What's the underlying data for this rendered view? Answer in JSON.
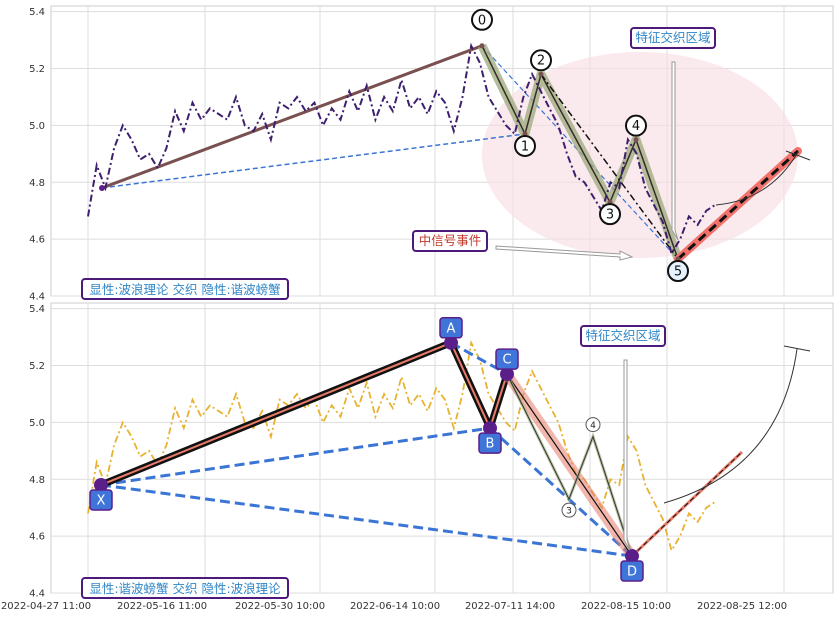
{
  "chart_data": [
    {
      "type": "line",
      "panel": "top",
      "title": "",
      "ylim": [
        4.4,
        5.42
      ],
      "yticks": [
        "4.4",
        "4.6",
        "4.8",
        "5.0",
        "5.2",
        "5.4"
      ],
      "grid": true,
      "series": [
        {
          "values": [
            4.68,
            4.86,
            4.78,
            4.92,
            5.0,
            4.95,
            4.88,
            4.9,
            4.85,
            4.92,
            5.05,
            4.98,
            5.08,
            5.02,
            5.06,
            5.04,
            5.02,
            5.1,
            5.0,
            4.98,
            5.04,
            4.95,
            5.08,
            5.06,
            5.1,
            5.05,
            5.08,
            5.0,
            5.06,
            5.02,
            5.12,
            5.05,
            5.14,
            5.02,
            5.1,
            5.05,
            5.16,
            5.06,
            5.1,
            5.04,
            5.12,
            5.08,
            4.98,
            5.1,
            5.28,
            5.22,
            5.1,
            5.05,
            5.0,
            4.97,
            5.1,
            5.18,
            5.12,
            5.06,
            5.0,
            4.9,
            4.82,
            4.8,
            4.75,
            4.7,
            4.8,
            4.78,
            4.95,
            4.9,
            4.78,
            4.72,
            4.66,
            4.55,
            4.6,
            4.68,
            4.65,
            4.7,
            4.72
          ]
        }
      ],
      "pattern_lines": {
        "solid_0_to_1": [
          [
            4.78,
            5.28
          ]
        ],
        "dashed_blue": [
          4.78,
          4.98
        ]
      },
      "wave_points": [
        {
          "label": "0",
          "value": 5.28
        },
        {
          "label": "1",
          "value": 4.97
        },
        {
          "label": "2",
          "value": 5.18
        },
        {
          "label": "3",
          "value": 4.73
        },
        {
          "label": "4",
          "value": 4.95
        },
        {
          "label": "5",
          "value": 4.53
        }
      ],
      "projection": {
        "from": 4.53,
        "to": 4.91
      },
      "annotations": {
        "zone": "特征交织区域",
        "signal": "中信号事件",
        "legend_box": "显性:波浪理论 交织 隐性:谐波螃蟹"
      },
      "colors": {
        "series": "#3d1f6e",
        "wave_band": "#9aa97a",
        "projection": "#f2726b",
        "zone_fill": "#f7dde4",
        "box_border": "#4b1a7a",
        "box_text": "#2f86c7"
      }
    },
    {
      "type": "line",
      "panel": "bottom",
      "title": "",
      "ylim": [
        4.4,
        5.42
      ],
      "yticks": [
        "4.4",
        "4.6",
        "4.8",
        "5.0",
        "5.2",
        "5.4"
      ],
      "xticks": [
        "2022-04-27 11:00",
        "2022-05-16 11:00",
        "2022-05-30 10:00",
        "2022-06-14 10:00",
        "2022-07-11 14:00",
        "2022-08-15 10:00",
        "2022-08-25 12:00"
      ],
      "grid": true,
      "series": [
        {
          "values": [
            4.68,
            4.86,
            4.78,
            4.92,
            5.0,
            4.95,
            4.88,
            4.9,
            4.85,
            4.92,
            5.05,
            4.98,
            5.08,
            5.02,
            5.06,
            5.04,
            5.02,
            5.1,
            5.0,
            4.98,
            5.04,
            4.95,
            5.08,
            5.06,
            5.1,
            5.05,
            5.08,
            5.0,
            5.06,
            5.02,
            5.12,
            5.05,
            5.14,
            5.02,
            5.1,
            5.05,
            5.16,
            5.06,
            5.1,
            5.04,
            5.12,
            5.08,
            4.98,
            5.1,
            5.28,
            5.22,
            5.1,
            5.05,
            5.0,
            4.97,
            5.1,
            5.18,
            5.12,
            5.06,
            5.0,
            4.9,
            4.82,
            4.8,
            4.75,
            4.7,
            4.8,
            4.78,
            4.95,
            4.9,
            4.78,
            4.72,
            4.66,
            4.55,
            4.6,
            4.68,
            4.65,
            4.7,
            4.72
          ]
        }
      ],
      "harmonic_points": [
        {
          "label": "X",
          "value": 4.78
        },
        {
          "label": "A",
          "value": 5.28
        },
        {
          "label": "B",
          "value": 4.98
        },
        {
          "label": "C",
          "value": 5.17
        },
        {
          "label": "D",
          "value": 4.53
        }
      ],
      "wave_marks": [
        {
          "label": "3",
          "value": 4.73
        },
        {
          "label": "4",
          "value": 4.95
        }
      ],
      "annotations": {
        "zone": "特征交织区域",
        "legend_box": "显性:谐波螃蟹 交织 隐性:波浪理论"
      },
      "colors": {
        "series": "#e8b230",
        "pattern": "#3a75d6",
        "xa_line": "#111111",
        "xa_glow": "#e87b6a",
        "point": "#5b1f8a",
        "label_bg": "#3f74d8"
      }
    }
  ]
}
